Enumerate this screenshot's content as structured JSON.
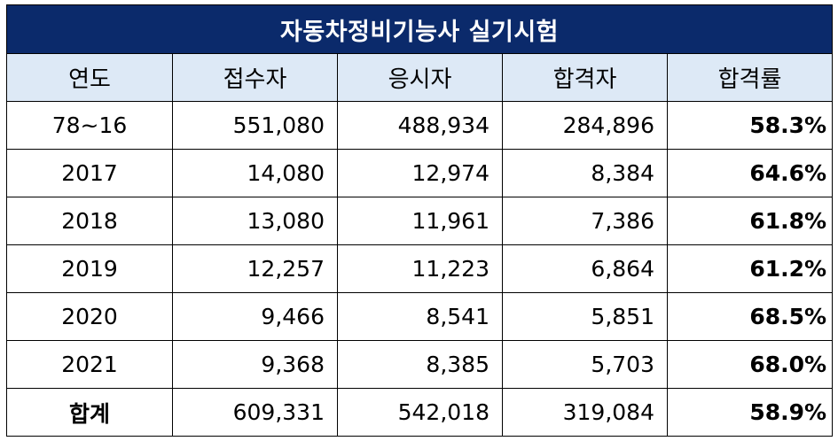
{
  "title": "자동차정비기능사 실기시험",
  "headers": [
    "연도",
    "접수자",
    "응시자",
    "합격자",
    "합격률"
  ],
  "rows": [
    {
      "year": "78~16",
      "applicants": "551,080",
      "examinees": "488,934",
      "passers": "284,896",
      "rate": "58.3%"
    },
    {
      "year": "2017",
      "applicants": "14,080",
      "examinees": "12,974",
      "passers": "8,384",
      "rate": "64.6%"
    },
    {
      "year": "2018",
      "applicants": "13,080",
      "examinees": "11,961",
      "passers": "7,386",
      "rate": "61.8%"
    },
    {
      "year": "2019",
      "applicants": "12,257",
      "examinees": "11,223",
      "passers": "6,864",
      "rate": "61.2%"
    },
    {
      "year": "2020",
      "applicants": "9,466",
      "examinees": "8,541",
      "passers": "5,851",
      "rate": "68.5%"
    },
    {
      "year": "2021",
      "applicants": "9,368",
      "examinees": "8,385",
      "passers": "5,703",
      "rate": "68.0%"
    }
  ],
  "total": {
    "label": "합계",
    "applicants": "609,331",
    "examinees": "542,018",
    "passers": "319,084",
    "rate": "58.9%"
  },
  "colors": {
    "title_bg": "#0b2a6b",
    "header_bg": "#dde9f6"
  }
}
